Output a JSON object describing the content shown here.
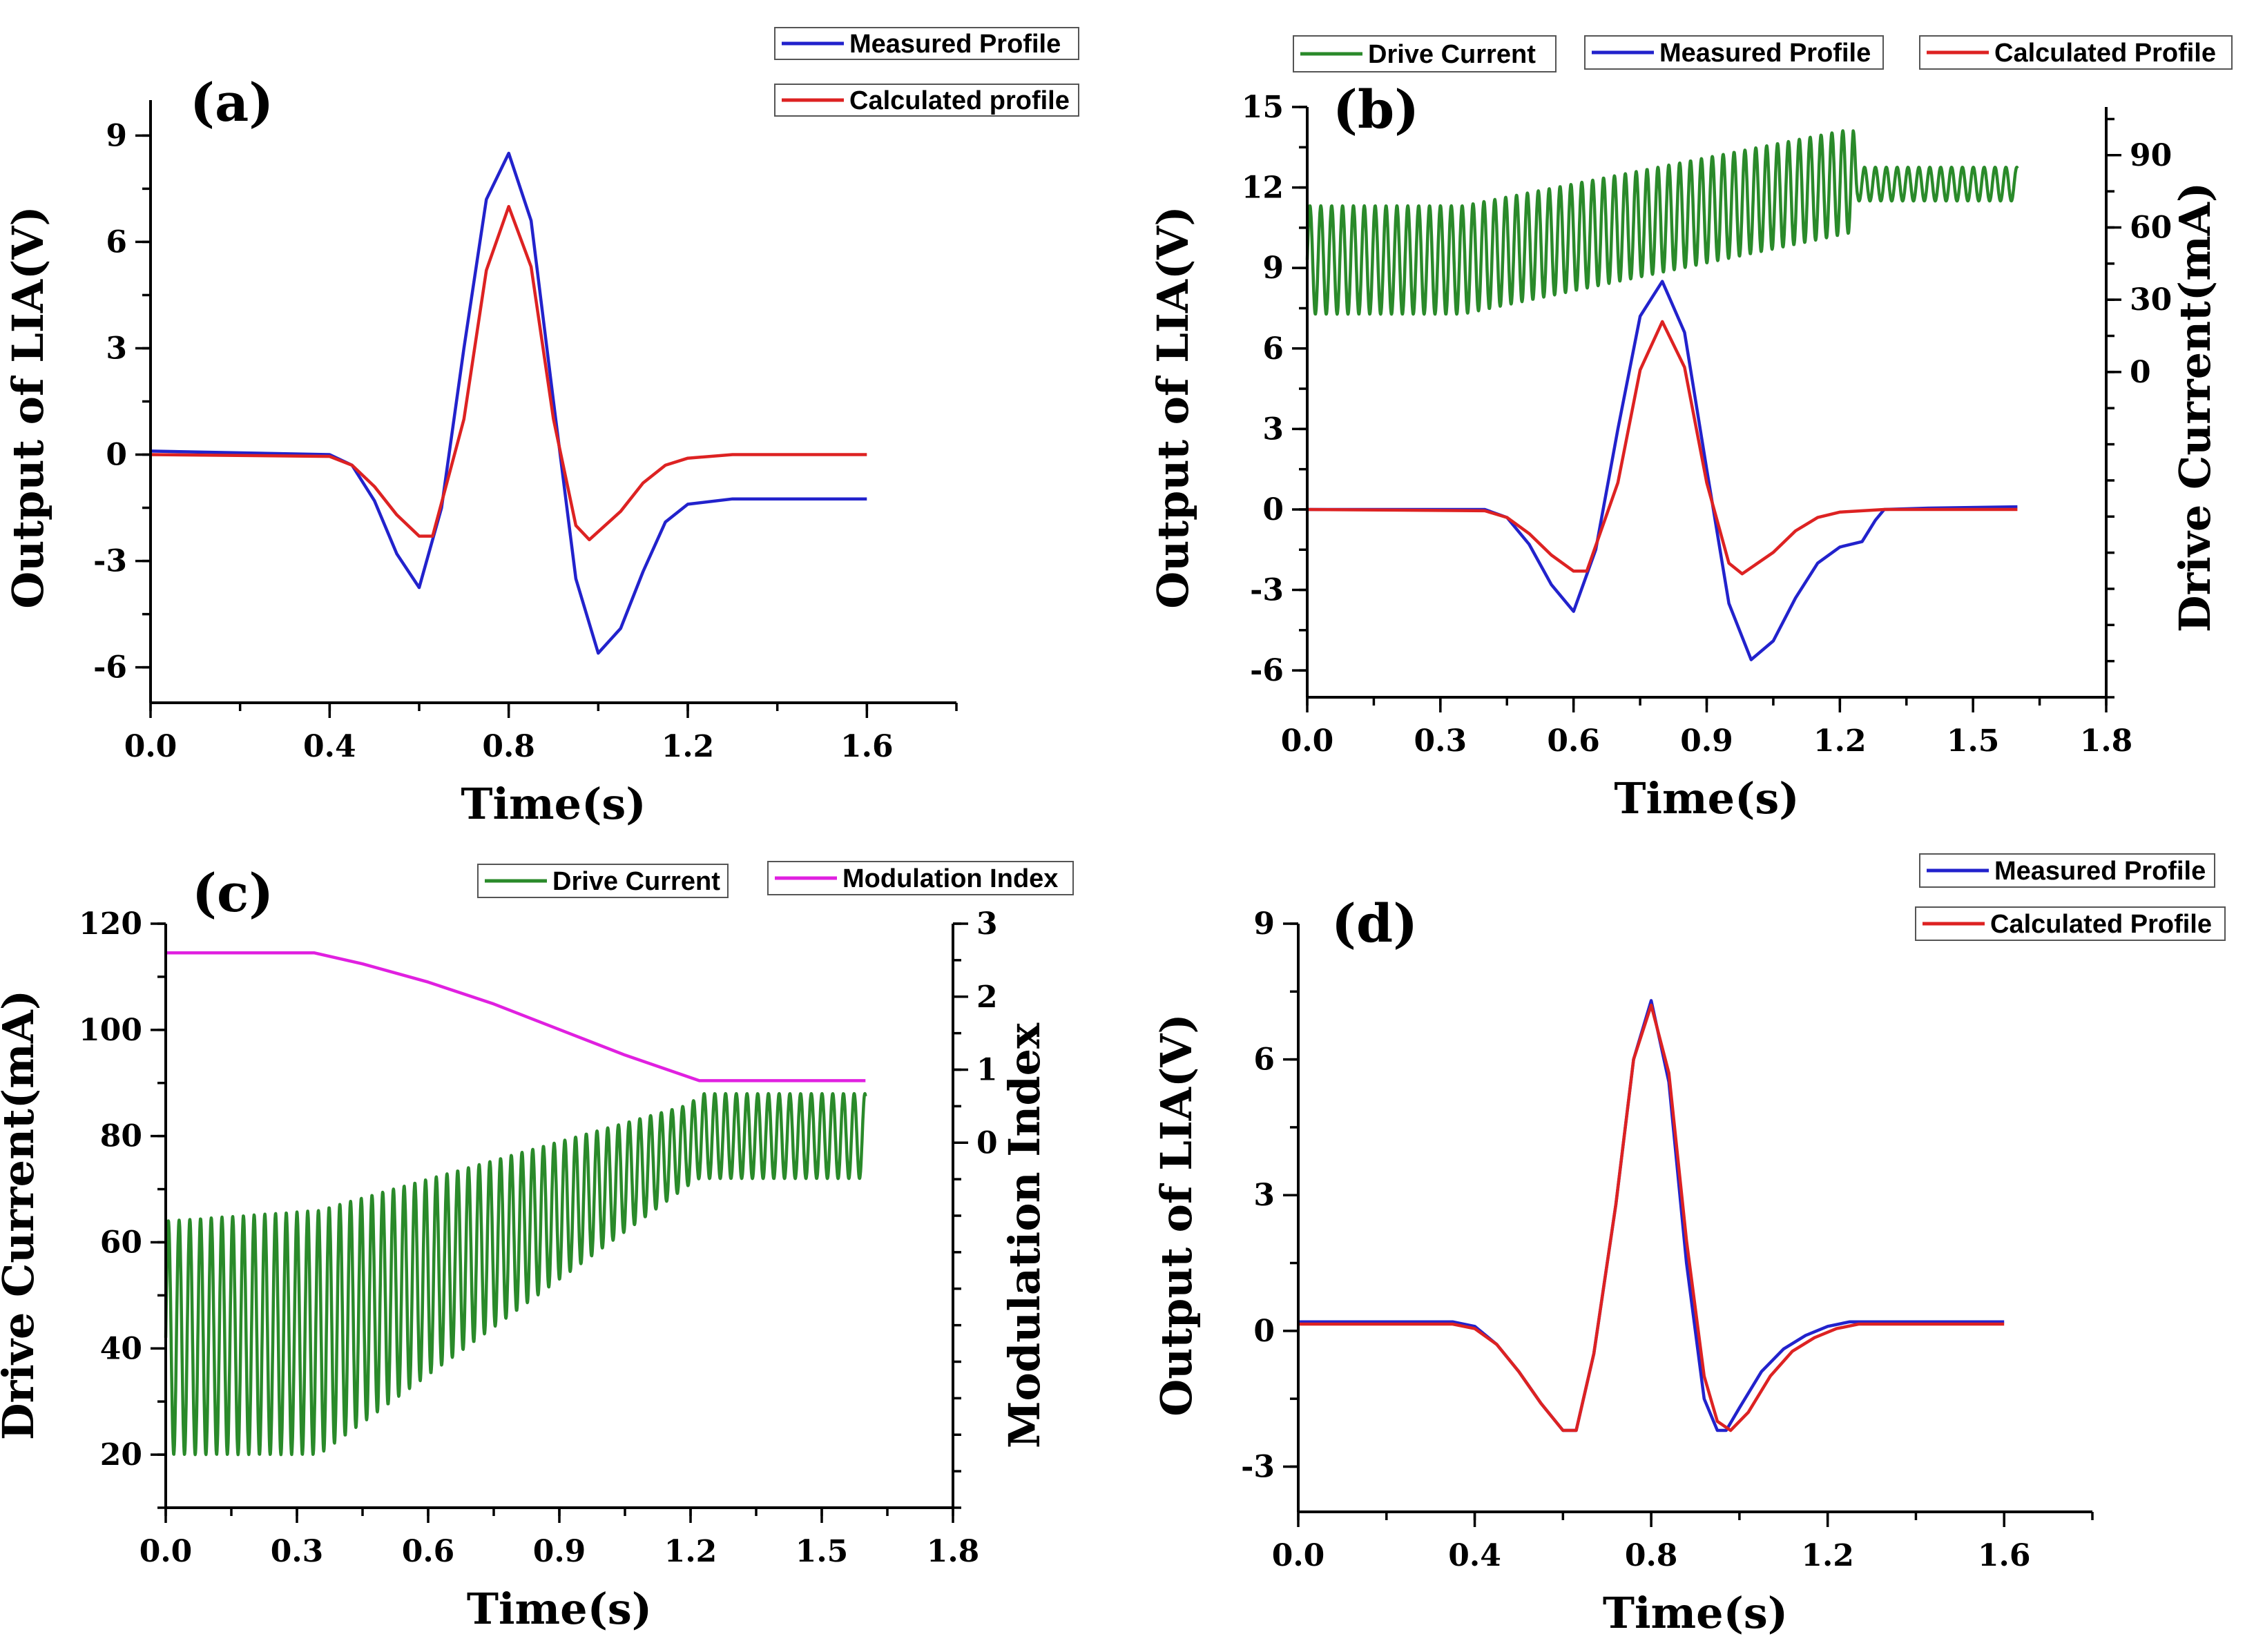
{
  "chart_data": [
    {
      "id": "a",
      "type": "line",
      "panel_label": "(a)",
      "xlabel": "Time(s)",
      "ylabel": "Output of LIA(V)",
      "xlim": [
        0,
        1.8
      ],
      "ylim": [
        -7,
        10
      ],
      "xticks": [
        0.0,
        0.4,
        0.8,
        1.2,
        1.6
      ],
      "xtick_labels": [
        "0.0",
        "0.4",
        "0.8",
        "1.2",
        "1.6"
      ],
      "yticks": [
        -6,
        -3,
        0,
        3,
        6,
        9
      ],
      "ytick_labels": [
        "-6",
        "-3",
        "0",
        "3",
        "6",
        "9"
      ],
      "legend": [
        {
          "name": "Measured Profile",
          "color": "#2222cc"
        },
        {
          "name": "Calculated profile",
          "color": "#dd2222"
        }
      ],
      "series": [
        {
          "name": "Measured Profile",
          "color": "#2222cc",
          "x": [
            0,
            0.4,
            0.45,
            0.5,
            0.55,
            0.6,
            0.65,
            0.7,
            0.75,
            0.8,
            0.85,
            0.9,
            0.95,
            1.0,
            1.05,
            1.1,
            1.15,
            1.2,
            1.3,
            1.4,
            1.6
          ],
          "y": [
            0.1,
            0.0,
            -0.3,
            -1.3,
            -2.8,
            -3.75,
            -1.5,
            3.0,
            7.2,
            8.5,
            6.6,
            1.5,
            -3.5,
            -5.6,
            -4.9,
            -3.3,
            -1.9,
            -1.4,
            -1.25,
            -1.25,
            -1.25
          ]
        },
        {
          "name": "Calculated profile",
          "color": "#dd2222",
          "x": [
            0,
            0.4,
            0.45,
            0.5,
            0.55,
            0.6,
            0.63,
            0.7,
            0.75,
            0.8,
            0.85,
            0.9,
            0.95,
            0.98,
            1.05,
            1.1,
            1.15,
            1.2,
            1.3,
            1.6
          ],
          "y": [
            0.0,
            -0.05,
            -0.3,
            -0.9,
            -1.7,
            -2.3,
            -2.3,
            1.0,
            5.2,
            7.0,
            5.3,
            1.0,
            -2.0,
            -2.4,
            -1.6,
            -0.8,
            -0.3,
            -0.1,
            0.0,
            0.0
          ]
        }
      ]
    },
    {
      "id": "b",
      "type": "line",
      "panel_label": "(b)",
      "xlabel": "Time(s)",
      "ylabel": "Output of LIA(V)",
      "ylabel_right": "Drive Current(mA)",
      "xlim": [
        0,
        1.8
      ],
      "ylim": [
        -7,
        15
      ],
      "ylim_right": [
        -135,
        110
      ],
      "xticks": [
        0.0,
        0.3,
        0.6,
        0.9,
        1.2,
        1.5,
        1.8
      ],
      "xtick_labels": [
        "0.0",
        "0.3",
        "0.6",
        "0.9",
        "1.2",
        "1.5",
        "1.8"
      ],
      "yticks": [
        -6,
        -3,
        0,
        3,
        6,
        9,
        12,
        15
      ],
      "ytick_labels": [
        "-6",
        "-3",
        "0",
        "3",
        "6",
        "9",
        "12",
        "15"
      ],
      "yticks_right": [
        0,
        30,
        60,
        90
      ],
      "ytick_labels_right": [
        "0",
        "30",
        "60",
        "90"
      ],
      "legend": [
        {
          "name": "Drive Current",
          "color": "#2a8a2a"
        },
        {
          "name": "Measured Profile",
          "color": "#2222cc"
        },
        {
          "name": "Calculated Profile",
          "color": "#dd2222"
        }
      ],
      "series": [
        {
          "name": "Measured Profile",
          "color": "#2222cc",
          "x": [
            0,
            0.4,
            0.45,
            0.5,
            0.55,
            0.6,
            0.65,
            0.7,
            0.75,
            0.8,
            0.85,
            0.9,
            0.95,
            1.0,
            1.05,
            1.1,
            1.15,
            1.2,
            1.25,
            1.28,
            1.3,
            1.4,
            1.6
          ],
          "y": [
            0.0,
            0.0,
            -0.3,
            -1.3,
            -2.8,
            -3.8,
            -1.5,
            3.0,
            7.2,
            8.5,
            6.6,
            1.5,
            -3.5,
            -5.6,
            -4.9,
            -3.3,
            -2.0,
            -1.4,
            -1.2,
            -0.4,
            0.0,
            0.05,
            0.1
          ]
        },
        {
          "name": "Calculated Profile",
          "color": "#dd2222",
          "x": [
            0,
            0.4,
            0.45,
            0.5,
            0.55,
            0.6,
            0.63,
            0.7,
            0.75,
            0.8,
            0.85,
            0.9,
            0.95,
            0.98,
            1.05,
            1.1,
            1.15,
            1.2,
            1.3,
            1.6
          ],
          "y": [
            0.0,
            -0.05,
            -0.3,
            -0.9,
            -1.7,
            -2.3,
            -2.3,
            1.0,
            5.2,
            7.0,
            5.3,
            1.0,
            -2.0,
            -2.4,
            -1.6,
            -0.8,
            -0.3,
            -0.1,
            0.0,
            0.0
          ]
        },
        {
          "name": "Drive Current",
          "color": "#2a8a2a",
          "axis": "right",
          "kind": "oscillation",
          "t_end": 1.6,
          "period": 0.0245,
          "envelope_t": [
            0,
            0.35,
            1.23,
            1.24,
            1.6
          ],
          "envelope_min": [
            24,
            24,
            58,
            71,
            71
          ],
          "envelope_max": [
            69,
            69,
            101,
            85,
            85
          ]
        }
      ]
    },
    {
      "id": "c",
      "type": "line",
      "panel_label": "(c)",
      "xlabel": "Time(s)",
      "ylabel": "Drive Current(mA)",
      "ylabel_right": "Modulation Index",
      "xlim": [
        0,
        1.8
      ],
      "ylim": [
        10,
        120
      ],
      "ylim_right": [
        -5,
        3
      ],
      "xticks": [
        0.0,
        0.3,
        0.6,
        0.9,
        1.2,
        1.5,
        1.8
      ],
      "xtick_labels": [
        "0.0",
        "0.3",
        "0.6",
        "0.9",
        "1.2",
        "1.5",
        "1.8"
      ],
      "yticks": [
        20,
        40,
        60,
        80,
        100,
        120
      ],
      "ytick_labels": [
        "20",
        "40",
        "60",
        "80",
        "100",
        "120"
      ],
      "yticks_right": [
        0,
        1,
        2,
        3
      ],
      "ytick_labels_right": [
        "0",
        "1",
        "2",
        "3"
      ],
      "legend": [
        {
          "name": "Drive Current",
          "color": "#2a8a2a"
        },
        {
          "name": "Modulation Index",
          "color": "#e020e0"
        }
      ],
      "series": [
        {
          "name": "Drive Current",
          "color": "#2a8a2a",
          "kind": "oscillation",
          "t_end": 1.6,
          "period": 0.0245,
          "envelope_t": [
            0,
            0.35,
            1.2,
            1.22,
            1.6
          ],
          "envelope_min": [
            20,
            20,
            71,
            72,
            72
          ],
          "envelope_max": [
            64,
            66,
            86,
            88,
            88
          ]
        },
        {
          "name": "Modulation Index",
          "color": "#e020e0",
          "axis": "right",
          "x": [
            0,
            0.34,
            0.45,
            0.6,
            0.75,
            0.9,
            1.05,
            1.22,
            1.6
          ],
          "y": [
            2.6,
            2.6,
            2.45,
            2.2,
            1.9,
            1.55,
            1.2,
            0.85,
            0.85
          ]
        }
      ]
    },
    {
      "id": "d",
      "type": "line",
      "panel_label": "(d)",
      "xlabel": "Time(s)",
      "ylabel": "Output of LIA(V)",
      "xlim": [
        0,
        1.8
      ],
      "ylim": [
        -4,
        9
      ],
      "xticks": [
        0.0,
        0.4,
        0.8,
        1.2,
        1.6
      ],
      "xtick_labels": [
        "0.0",
        "0.4",
        "0.8",
        "1.2",
        "1.6"
      ],
      "yticks": [
        -3,
        0,
        3,
        6,
        9
      ],
      "ytick_labels": [
        "-3",
        "0",
        "3",
        "6",
        "9"
      ],
      "legend": [
        {
          "name": "Measured Profile",
          "color": "#2222cc"
        },
        {
          "name": "Calculated Profile",
          "color": "#dd2222"
        }
      ],
      "series": [
        {
          "name": "Measured Profile",
          "color": "#2222cc",
          "x": [
            0,
            0.35,
            0.4,
            0.45,
            0.5,
            0.55,
            0.6,
            0.63,
            0.67,
            0.72,
            0.76,
            0.8,
            0.84,
            0.88,
            0.92,
            0.95,
            0.97,
            1.0,
            1.05,
            1.1,
            1.15,
            1.2,
            1.25,
            1.6
          ],
          "y": [
            0.2,
            0.2,
            0.1,
            -0.3,
            -0.9,
            -1.6,
            -2.2,
            -2.2,
            -0.5,
            2.8,
            6.0,
            7.3,
            5.5,
            1.5,
            -1.5,
            -2.2,
            -2.2,
            -1.7,
            -0.9,
            -0.4,
            -0.1,
            0.1,
            0.2,
            0.2
          ]
        },
        {
          "name": "Calculated Profile",
          "color": "#dd2222",
          "x": [
            0,
            0.35,
            0.4,
            0.45,
            0.5,
            0.55,
            0.6,
            0.63,
            0.67,
            0.72,
            0.76,
            0.8,
            0.84,
            0.88,
            0.92,
            0.95,
            0.98,
            1.02,
            1.07,
            1.12,
            1.17,
            1.22,
            1.27,
            1.6
          ],
          "y": [
            0.15,
            0.15,
            0.05,
            -0.3,
            -0.9,
            -1.6,
            -2.2,
            -2.2,
            -0.5,
            2.8,
            6.0,
            7.2,
            5.7,
            2.0,
            -1.0,
            -2.0,
            -2.2,
            -1.8,
            -1.0,
            -0.45,
            -0.15,
            0.05,
            0.15,
            0.15
          ]
        }
      ]
    }
  ]
}
